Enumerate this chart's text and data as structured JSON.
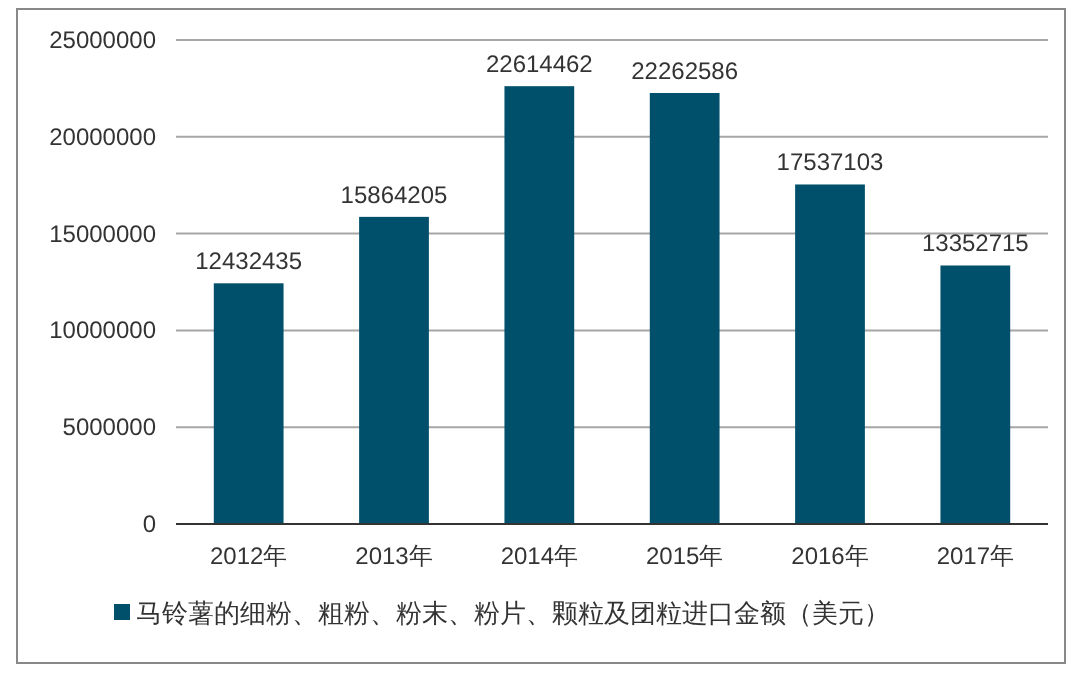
{
  "chart_data": {
    "type": "bar",
    "categories": [
      "2012年",
      "2013年",
      "2014年",
      "2015年",
      "2016年",
      "2017年"
    ],
    "series": [
      {
        "name": "马铃薯的细粉、粗粉、粉末、粉片、颗粒及团粒进口金额（美元）",
        "color": "#004f6b",
        "values": [
          12432435,
          15864205,
          22614462,
          22262586,
          17537103,
          13352715
        ]
      }
    ],
    "ylim": [
      0,
      25000000
    ],
    "yticks": [
      0,
      5000000,
      10000000,
      15000000,
      20000000,
      25000000
    ],
    "grid": "y",
    "data_labels": true,
    "legend": "bottom"
  }
}
